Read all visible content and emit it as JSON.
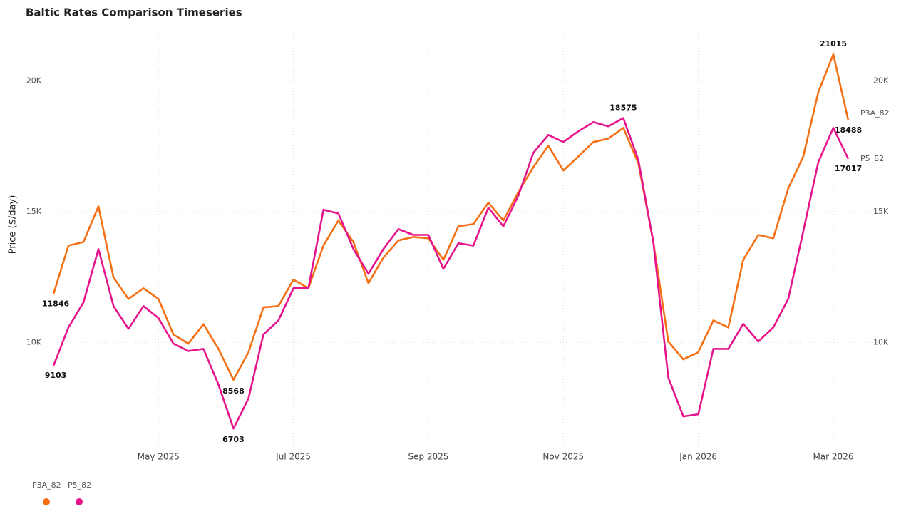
{
  "chart_data": {
    "type": "line",
    "title": "Baltic Rates Comparison Timeseries",
    "y_label": "Price ($/day)",
    "categories": [
      null,
      null,
      null,
      null,
      null,
      null,
      null,
      "May 2025",
      null,
      null,
      null,
      null,
      null,
      null,
      null,
      null,
      "Jul 2025",
      null,
      null,
      null,
      null,
      null,
      null,
      null,
      null,
      "Sep 2025",
      null,
      null,
      null,
      null,
      null,
      null,
      null,
      null,
      "Nov 2025",
      null,
      null,
      null,
      null,
      null,
      null,
      null,
      null,
      "Jan 2026",
      null,
      null,
      null,
      null,
      null,
      null,
      null,
      null,
      "Mar 2026",
      null
    ],
    "ylim": [
      6000,
      22000
    ],
    "yticks": [
      {
        "value": 10000,
        "label": "10K"
      },
      {
        "value": 15000,
        "label": "15K"
      },
      {
        "value": 20000,
        "label": "20K"
      }
    ],
    "y2lim": [
      6000,
      22000
    ],
    "y2ticks": [
      {
        "value": 10000,
        "label": "10K"
      },
      {
        "value": 15000,
        "label": "15K"
      },
      {
        "value": 20000,
        "label": "20K"
      }
    ],
    "grid": true,
    "legend": "bottom-left",
    "series": [
      {
        "name": "P3A_82",
        "color": "#f57014",
        "values": [
          11846,
          13700,
          13840,
          15200,
          12480,
          11660,
          12070,
          11660,
          10300,
          9950,
          10700,
          9750,
          8568,
          9620,
          11340,
          11390,
          12400,
          12070,
          13700,
          14660,
          13840,
          12260,
          13240,
          13900,
          14030,
          13980,
          13160,
          14440,
          14520,
          15340,
          14660,
          15750,
          16700,
          17520,
          16570,
          17110,
          17660,
          17790,
          18200,
          16840,
          13840,
          10030,
          9350,
          9620,
          10840,
          10570,
          13160,
          14110,
          13980,
          15890,
          17110,
          19560,
          21015,
          18488
        ]
      },
      {
        "name": "P5_82",
        "color": "#e6148c",
        "values": [
          9103,
          10570,
          11530,
          13570,
          11390,
          10520,
          11390,
          10930,
          9950,
          9670,
          9750,
          8390,
          6703,
          7850,
          10300,
          10840,
          12070,
          12070,
          15070,
          14930,
          13570,
          12620,
          13570,
          14330,
          14110,
          14110,
          12810,
          13790,
          13700,
          15150,
          14440,
          15610,
          17250,
          17930,
          17660,
          18070,
          18420,
          18260,
          18575,
          16980,
          13840,
          8660,
          7170,
          7250,
          9750,
          9750,
          10710,
          10030,
          10570,
          11660,
          14250,
          16890,
          18200,
          17017
        ]
      }
    ]
  }
}
